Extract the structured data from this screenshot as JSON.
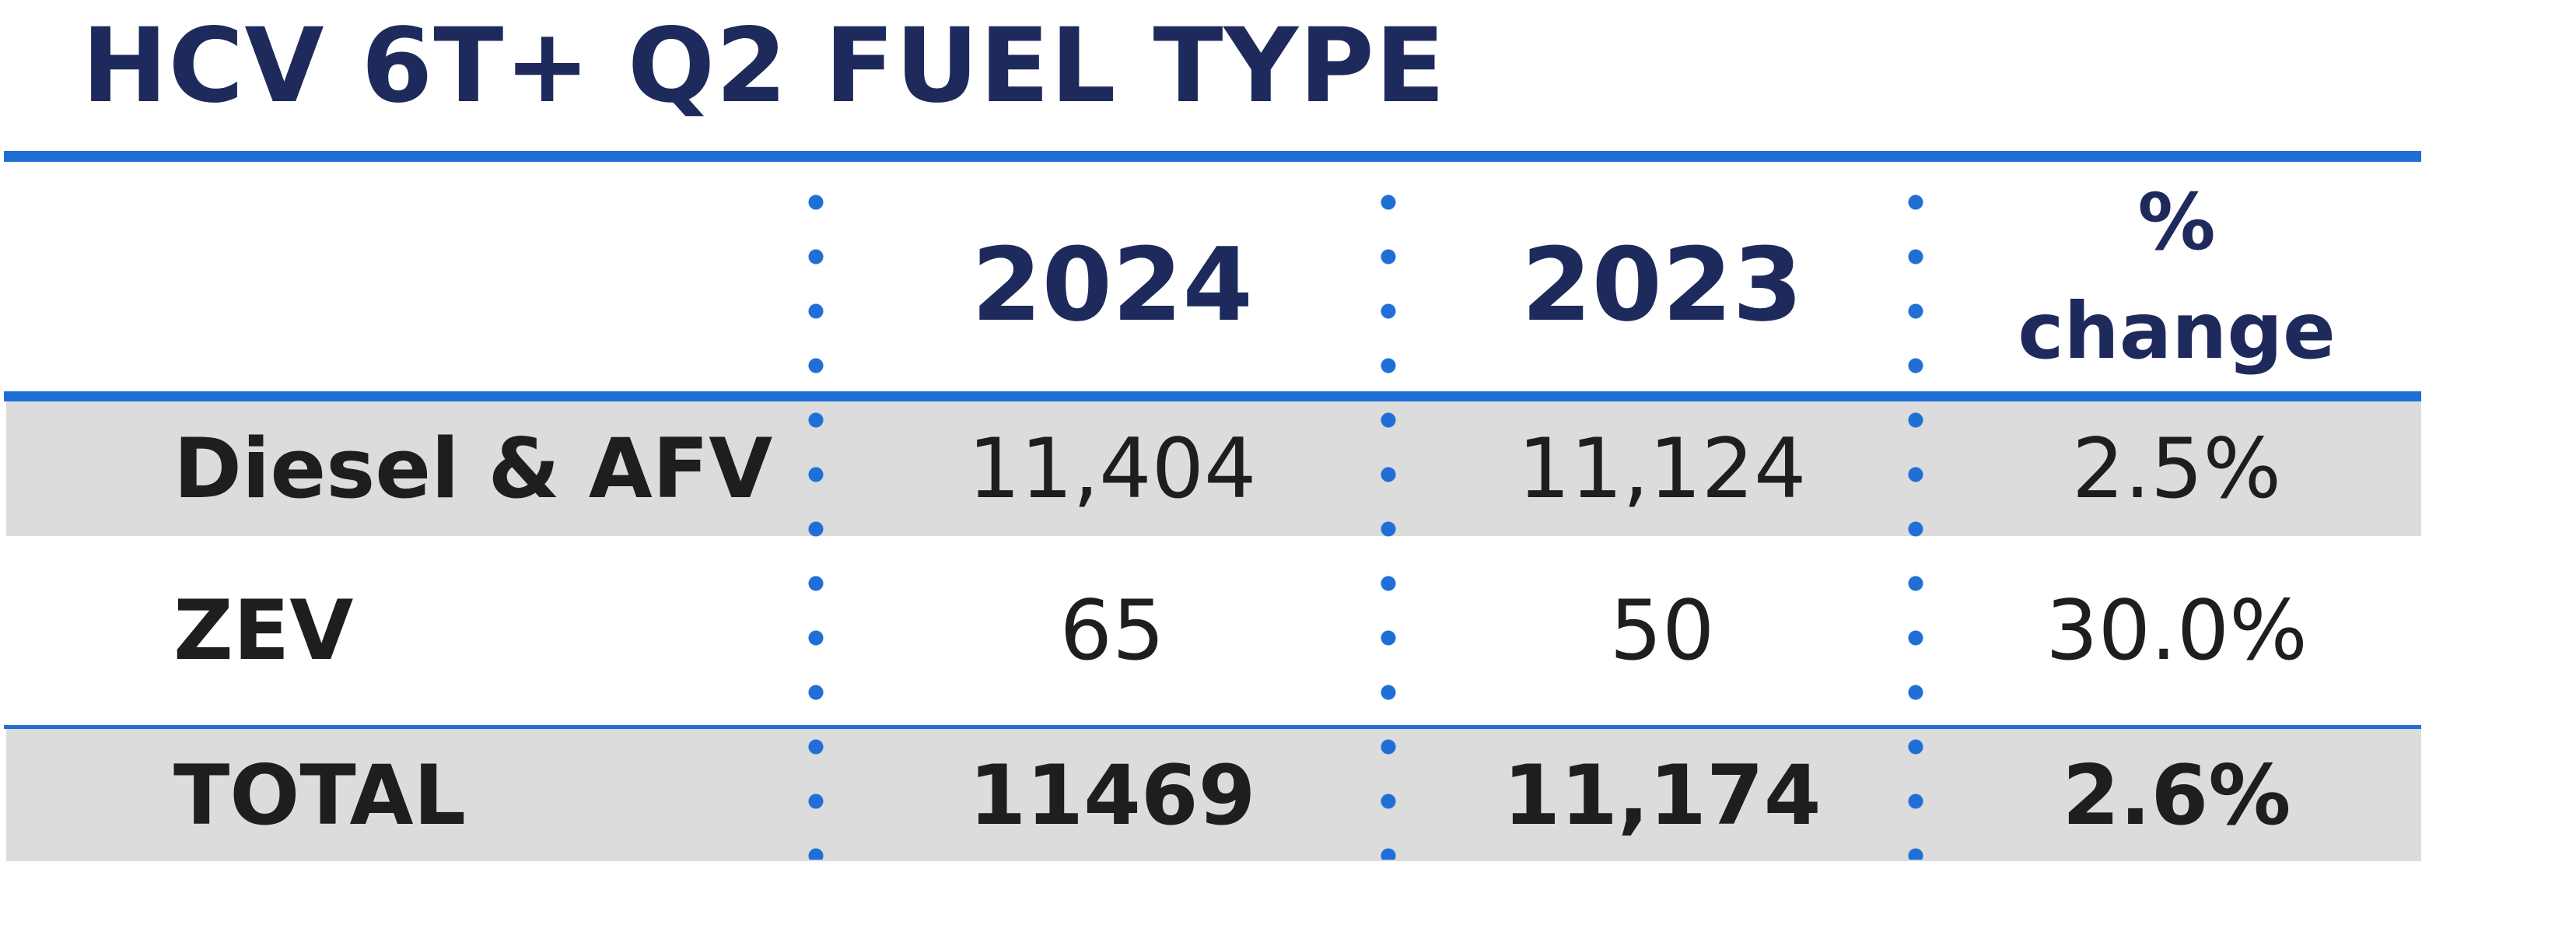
{
  "title": "HCV 6T+ Q2 FUEL TYPE",
  "columns": {
    "col1": "2024",
    "col2": "2023",
    "col3_line1": "%",
    "col3_line2": "change"
  },
  "rows": [
    {
      "label": "Diesel & AFV",
      "v2024": "11,404",
      "v2023": "11,124",
      "change": "2.5%"
    },
    {
      "label": "ZEV",
      "v2024": "65",
      "v2023": "50",
      "change": "30.0%"
    }
  ],
  "total": {
    "label": "TOTAL",
    "v2024": "11469",
    "v2023": "11,174",
    "change": "2.6%"
  },
  "colors": {
    "title": "#1f2a5c",
    "accent": "#1f6fd6",
    "row_shade": "#dcdcdc"
  }
}
